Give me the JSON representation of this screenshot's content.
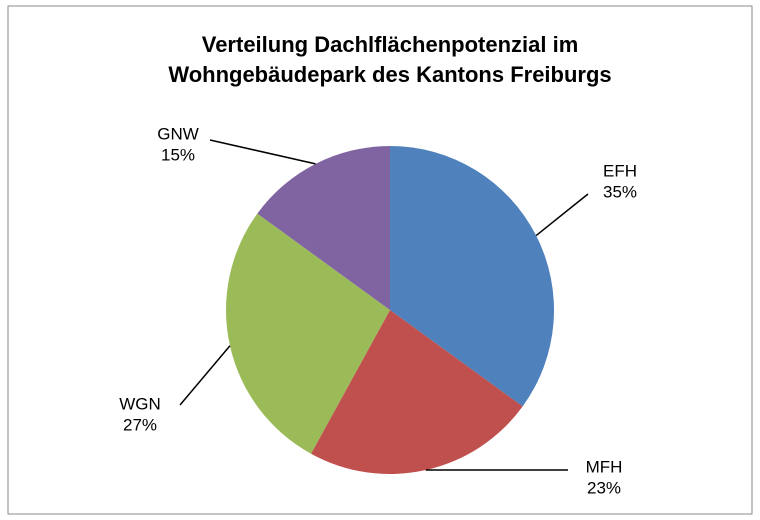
{
  "chart_data": {
    "type": "pie",
    "title": [
      "Verteilung Dachlflächenpotenzial im",
      "Wohngebäudepark des Kantons Freiburgs"
    ],
    "categories": [
      "EFH",
      "MFH",
      "WGN",
      "GNW"
    ],
    "values": [
      35,
      23,
      27,
      15
    ],
    "value_labels": [
      "35%",
      "23%",
      "27%",
      "15%"
    ],
    "colors": [
      "#4f81bd",
      "#c0504d",
      "#9bbb59",
      "#8064a2"
    ]
  }
}
